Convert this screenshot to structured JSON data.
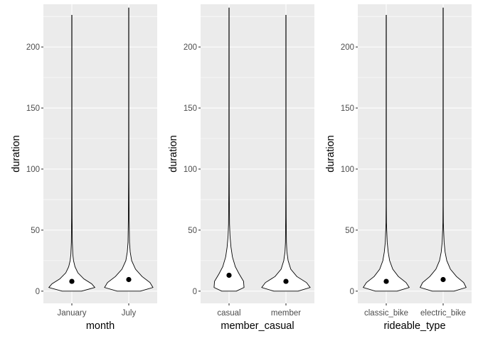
{
  "chart_data": [
    {
      "type": "violin",
      "xlabel": "month",
      "ylabel": "duration",
      "ylim": [
        -10,
        235
      ],
      "yticks": [
        0,
        50,
        100,
        150,
        200
      ],
      "grid": true,
      "categories": [
        "January",
        "July"
      ],
      "violins": [
        {
          "max": 226,
          "mean": 8,
          "profile": [
            [
              0,
              0.4
            ],
            [
              3,
              0.95
            ],
            [
              6,
              0.82
            ],
            [
              10,
              0.5
            ],
            [
              15,
              0.25
            ],
            [
              20,
              0.13
            ],
            [
              25,
              0.07
            ],
            [
              30,
              0.04
            ],
            [
              40,
              0.02
            ],
            [
              60,
              0.01
            ],
            [
              90,
              0.006
            ],
            [
              130,
              0.004
            ],
            [
              226,
              0.004
            ]
          ]
        },
        {
          "max": 232,
          "mean": 9.5,
          "profile": [
            [
              0,
              0.48
            ],
            [
              3,
              1.0
            ],
            [
              7,
              0.88
            ],
            [
              12,
              0.55
            ],
            [
              18,
              0.28
            ],
            [
              25,
              0.12
            ],
            [
              32,
              0.06
            ],
            [
              40,
              0.03
            ],
            [
              60,
              0.015
            ],
            [
              90,
              0.008
            ],
            [
              130,
              0.005
            ],
            [
              232,
              0.004
            ]
          ]
        }
      ]
    },
    {
      "type": "violin",
      "xlabel": "member_casual",
      "ylabel": "duration",
      "ylim": [
        -10,
        235
      ],
      "yticks": [
        0,
        50,
        100,
        150,
        200
      ],
      "grid": true,
      "categories": [
        "casual",
        "member"
      ],
      "violins": [
        {
          "max": 232,
          "mean": 13,
          "profile": [
            [
              0,
              0.3
            ],
            [
              3,
              0.62
            ],
            [
              8,
              0.6
            ],
            [
              14,
              0.42
            ],
            [
              20,
              0.26
            ],
            [
              28,
              0.14
            ],
            [
              36,
              0.08
            ],
            [
              45,
              0.04
            ],
            [
              55,
              0.02
            ],
            [
              80,
              0.01
            ],
            [
              110,
              0.006
            ],
            [
              232,
              0.004
            ]
          ]
        },
        {
          "max": 226,
          "mean": 8,
          "profile": [
            [
              0,
              0.5
            ],
            [
              3,
              1.0
            ],
            [
              7,
              0.85
            ],
            [
              12,
              0.45
            ],
            [
              18,
              0.2
            ],
            [
              25,
              0.09
            ],
            [
              32,
              0.04
            ],
            [
              40,
              0.02
            ],
            [
              60,
              0.01
            ],
            [
              90,
              0.005
            ],
            [
              226,
              0.004
            ]
          ]
        }
      ]
    },
    {
      "type": "violin",
      "xlabel": "rideable_type",
      "ylabel": "duration",
      "ylim": [
        -10,
        235
      ],
      "yticks": [
        0,
        50,
        100,
        150,
        200
      ],
      "grid": true,
      "categories": [
        "classic_bike",
        "electric_bike"
      ],
      "violins": [
        {
          "max": 226,
          "mean": 8,
          "profile": [
            [
              0,
              0.45
            ],
            [
              3,
              0.95
            ],
            [
              7,
              0.82
            ],
            [
              12,
              0.5
            ],
            [
              18,
              0.27
            ],
            [
              25,
              0.14
            ],
            [
              32,
              0.08
            ],
            [
              40,
              0.04
            ],
            [
              50,
              0.02
            ],
            [
              56,
              0.01
            ],
            [
              70,
              0.006
            ],
            [
              226,
              0.004
            ]
          ]
        },
        {
          "max": 232,
          "mean": 9.5,
          "profile": [
            [
              0,
              0.45
            ],
            [
              3,
              0.95
            ],
            [
              7,
              0.85
            ],
            [
              12,
              0.55
            ],
            [
              18,
              0.3
            ],
            [
              25,
              0.15
            ],
            [
              32,
              0.08
            ],
            [
              40,
              0.04
            ],
            [
              50,
              0.02
            ],
            [
              56,
              0.01
            ],
            [
              70,
              0.006
            ],
            [
              232,
              0.004
            ]
          ]
        }
      ]
    }
  ]
}
